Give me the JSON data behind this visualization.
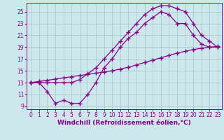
{
  "background_color": "#cce8ec",
  "grid_color": "#aacccc",
  "line_color": "#880088",
  "marker": "+",
  "markersize": 4,
  "markeredgewidth": 1.0,
  "linewidth": 0.9,
  "xlabel": "Windchill (Refroidissement éolien,°C)",
  "xlabel_fontsize": 6.5,
  "tick_fontsize": 5.5,
  "xlim": [
    -0.5,
    23.5
  ],
  "ylim": [
    8.5,
    26.5
  ],
  "yticks": [
    9,
    11,
    13,
    15,
    17,
    19,
    21,
    23,
    25
  ],
  "xticks": [
    0,
    1,
    2,
    3,
    4,
    5,
    6,
    7,
    8,
    9,
    10,
    11,
    12,
    13,
    14,
    15,
    16,
    17,
    18,
    19,
    20,
    21,
    22,
    23
  ],
  "line1_x": [
    0,
    1,
    2,
    3,
    4,
    5,
    6,
    7,
    8,
    9,
    10,
    11,
    12,
    13,
    14,
    15,
    16,
    17,
    18,
    19,
    20,
    21,
    22,
    23
  ],
  "line1_y": [
    13.0,
    13.2,
    13.4,
    13.6,
    13.8,
    14.0,
    14.2,
    14.4,
    14.6,
    14.8,
    15.0,
    15.3,
    15.6,
    16.0,
    16.4,
    16.8,
    17.2,
    17.6,
    18.0,
    18.3,
    18.6,
    18.8,
    19.0,
    19.1
  ],
  "line2_x": [
    0,
    1,
    2,
    3,
    4,
    5,
    6,
    7,
    8,
    9,
    10,
    11,
    12,
    13,
    14,
    15,
    16,
    17,
    18,
    19,
    20,
    21,
    22,
    23
  ],
  "line2_y": [
    13.0,
    13.0,
    11.5,
    9.5,
    10.0,
    9.5,
    9.5,
    11.0,
    13.0,
    15.5,
    17.0,
    19.0,
    20.5,
    21.5,
    23.0,
    24.0,
    25.0,
    24.5,
    23.0,
    23.0,
    21.0,
    19.5,
    19.0,
    19.0
  ],
  "line3_x": [
    0,
    1,
    2,
    3,
    4,
    5,
    6,
    7,
    8,
    9,
    10,
    11,
    12,
    13,
    14,
    15,
    16,
    17,
    18,
    19,
    20,
    21,
    22,
    23
  ],
  "line3_y": [
    13.0,
    13.0,
    13.0,
    13.0,
    13.0,
    13.0,
    13.5,
    14.5,
    15.5,
    17.0,
    18.5,
    20.0,
    21.5,
    23.0,
    24.5,
    25.5,
    26.0,
    26.0,
    25.5,
    25.0,
    23.0,
    21.0,
    20.0,
    19.0
  ]
}
